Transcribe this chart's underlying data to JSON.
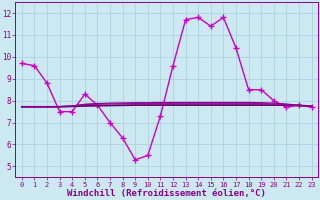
{
  "title": "Windchill (Refroidissement éolien,°C)",
  "bg_color": "#cce8f0",
  "grid_color": "#aad4e0",
  "line_color": "#880088",
  "xlim": [
    -0.5,
    23.5
  ],
  "ylim": [
    4.5,
    12.5
  ],
  "yticks": [
    5,
    6,
    7,
    8,
    9,
    10,
    11,
    12
  ],
  "xticks": [
    0,
    1,
    2,
    3,
    4,
    5,
    6,
    7,
    8,
    9,
    10,
    11,
    12,
    13,
    14,
    15,
    16,
    17,
    18,
    19,
    20,
    21,
    22,
    23
  ],
  "series": [
    {
      "x": [
        0,
        1,
        2,
        3,
        4,
        5,
        6,
        7,
        8,
        9,
        10,
        11,
        12,
        13,
        14,
        15,
        16,
        17,
        18,
        19,
        20,
        21,
        22,
        23
      ],
      "y": [
        9.7,
        9.6,
        8.8,
        7.5,
        7.5,
        8.3,
        7.8,
        7.0,
        6.3,
        5.3,
        5.5,
        7.3,
        9.6,
        11.7,
        11.8,
        11.4,
        11.8,
        10.4,
        8.5,
        8.5,
        8.0,
        7.7,
        7.8,
        7.7
      ],
      "marker": "+",
      "markersize": 4,
      "linewidth": 1.0,
      "color": "#cc00cc"
    },
    {
      "x": [
        0,
        1,
        2,
        3,
        4,
        5,
        6,
        7,
        8,
        9,
        10,
        11,
        12,
        13,
        14,
        15,
        16,
        17,
        18,
        19,
        20,
        21,
        22,
        23
      ],
      "y": [
        7.72,
        7.72,
        7.72,
        7.72,
        7.74,
        7.76,
        7.77,
        7.78,
        7.79,
        7.8,
        7.8,
        7.8,
        7.8,
        7.8,
        7.8,
        7.8,
        7.8,
        7.8,
        7.8,
        7.8,
        7.8,
        7.8,
        7.78,
        7.75
      ],
      "marker": null,
      "linewidth": 1.3,
      "color": "#660066"
    },
    {
      "x": [
        0,
        1,
        2,
        3,
        4,
        5,
        6,
        7,
        8,
        9,
        10,
        11,
        12,
        13,
        14,
        15,
        16,
        17,
        18,
        19,
        20,
        21,
        22,
        23
      ],
      "y": [
        7.72,
        7.72,
        7.72,
        7.73,
        7.76,
        7.82,
        7.84,
        7.85,
        7.86,
        7.87,
        7.87,
        7.87,
        7.88,
        7.88,
        7.88,
        7.88,
        7.88,
        7.88,
        7.88,
        7.87,
        7.85,
        7.82,
        7.77,
        7.73
      ],
      "marker": null,
      "linewidth": 0.9,
      "color": "#aa00aa"
    },
    {
      "x": [
        0,
        1,
        2,
        3,
        4,
        5,
        6,
        7,
        8,
        9,
        10,
        11,
        12,
        13,
        14,
        15,
        16,
        17,
        18,
        19,
        20,
        21,
        22,
        23
      ],
      "y": [
        7.72,
        7.72,
        7.72,
        7.73,
        7.76,
        7.84,
        7.87,
        7.89,
        7.9,
        7.91,
        7.91,
        7.92,
        7.92,
        7.92,
        7.92,
        7.92,
        7.92,
        7.92,
        7.92,
        7.91,
        7.89,
        7.85,
        7.79,
        7.74
      ],
      "marker": null,
      "linewidth": 0.8,
      "color": "#880088"
    }
  ],
  "xlabel_fontsize": 6.5,
  "tick_fontsize": 5.5
}
